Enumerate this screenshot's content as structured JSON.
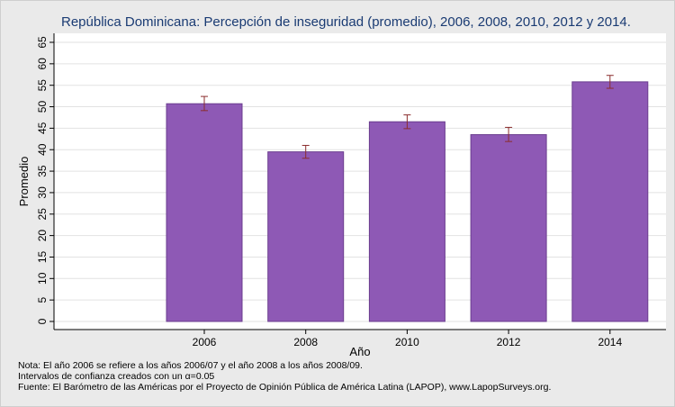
{
  "title": "República Dominicana: Percepción de inseguridad (promedio), 2006, 2008, 2010, 2012 y 2014.",
  "chart_data": {
    "type": "bar",
    "categories": [
      "2006",
      "2008",
      "2010",
      "2012",
      "2014"
    ],
    "values": [
      50.7,
      39.5,
      46.5,
      43.5,
      55.8
    ],
    "error_low": [
      49.1,
      38.0,
      44.9,
      41.9,
      54.3
    ],
    "error_high": [
      52.4,
      41.0,
      48.1,
      45.2,
      57.3
    ],
    "xlabel": "Año",
    "ylabel": "Promedio",
    "ylim": [
      0,
      65
    ],
    "yticks": [
      0,
      5,
      10,
      15,
      20,
      25,
      30,
      35,
      40,
      45,
      50,
      55,
      60,
      65
    ],
    "grid": true,
    "colors": {
      "bar": "#8e59b5",
      "bar_edge": "#6b3d8f",
      "error": "#8b2d2d",
      "grid": "#e2e2e2",
      "plot_bg": "#ffffff"
    }
  },
  "notes": {
    "line1": "Nota: El año 2006 se refiere a los años 2006/07 y el año 2008 a los años 2008/09.",
    "line2": "Intervalos de confianza creados con un α=0.05",
    "line3": "Fuente: El Barómetro de las Américas por el Proyecto de Opinión Pública de América Latina (LAPOP), www.LapopSurveys.org."
  }
}
